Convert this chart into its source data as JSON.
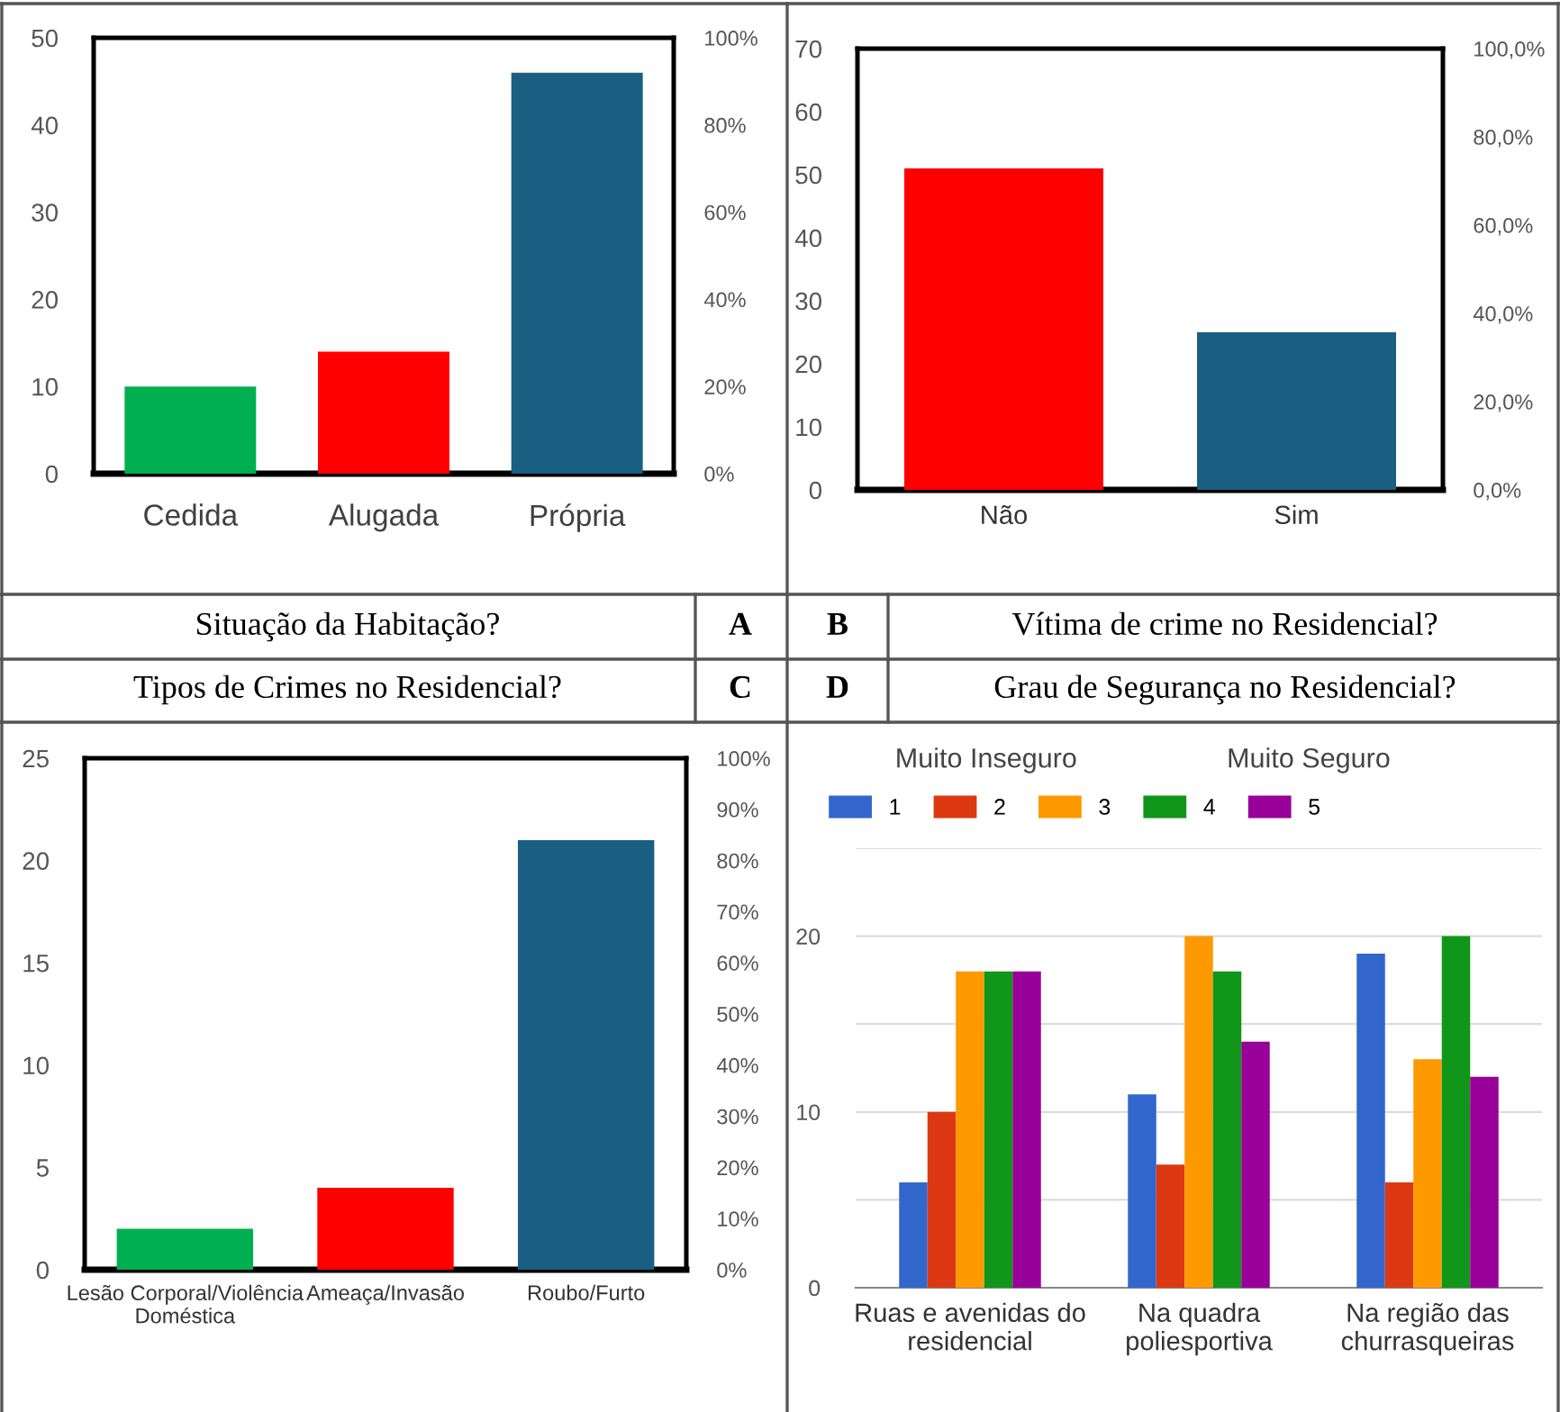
{
  "chart_data": [
    {
      "type": "bar",
      "title": "Situação da Habitação?",
      "subtitle": "A",
      "categories": [
        "Cedida",
        "Alugada",
        "Própria"
      ],
      "values": [
        10,
        14,
        46
      ],
      "colors": [
        "#00b050",
        "#ff0000",
        "#1a5e82"
      ],
      "ylim": [
        0,
        50
      ],
      "yticks": [
        0,
        10,
        20,
        30,
        40,
        50
      ],
      "y2lim": [
        0,
        100
      ],
      "y2ticks": [
        {
          "value": 0,
          "label": "0%"
        },
        {
          "value": 20,
          "label": "20%"
        },
        {
          "value": 40,
          "label": "40%"
        },
        {
          "value": 60,
          "label": "60%"
        },
        {
          "value": 80,
          "label": "80%"
        },
        {
          "value": 100,
          "label": "100%"
        }
      ]
    },
    {
      "type": "bar",
      "title": "Vítima de crime no Residencial?",
      "subtitle": "B",
      "categories": [
        "Não",
        "Sim"
      ],
      "values": [
        51,
        25
      ],
      "colors": [
        "#ff0000",
        "#1a5e82"
      ],
      "ylim": [
        0,
        70
      ],
      "yticks": [
        0,
        10,
        20,
        30,
        40,
        50,
        60,
        70
      ],
      "y2lim": [
        0,
        100
      ],
      "y2ticks": [
        {
          "value": 0,
          "label": "0,0%"
        },
        {
          "value": 20,
          "label": "20,0%"
        },
        {
          "value": 40,
          "label": "40,0%"
        },
        {
          "value": 60,
          "label": "60,0%"
        },
        {
          "value": 80,
          "label": "80,0%"
        },
        {
          "value": 100,
          "label": "100,0%"
        }
      ]
    },
    {
      "type": "bar",
      "title": "Tipos de Crimes no Residencial?",
      "subtitle": "C",
      "categories": [
        "Lesão Corporal/Violência\nDoméstica",
        "Ameaça/Invasão",
        "Roubo/Furto"
      ],
      "values": [
        2,
        4,
        21
      ],
      "colors": [
        "#00b050",
        "#ff0000",
        "#1a5e82"
      ],
      "ylim": [
        0,
        25
      ],
      "yticks": [
        0,
        5,
        10,
        15,
        20,
        25
      ],
      "y2lim": [
        0,
        100
      ],
      "y2ticks": [
        {
          "value": 0,
          "label": "0%"
        },
        {
          "value": 10,
          "label": "10%"
        },
        {
          "value": 20,
          "label": "20%"
        },
        {
          "value": 30,
          "label": "30%"
        },
        {
          "value": 40,
          "label": "40%"
        },
        {
          "value": 50,
          "label": "50%"
        },
        {
          "value": 60,
          "label": "60%"
        },
        {
          "value": 70,
          "label": "70%"
        },
        {
          "value": 80,
          "label": "80%"
        },
        {
          "value": 90,
          "label": "90%"
        },
        {
          "value": 100,
          "label": "100%"
        }
      ]
    },
    {
      "type": "bar",
      "title": "Grau de Segurança no Residencial?",
      "subtitle": "D",
      "annotations": [
        "Muito Inseguro",
        "Muito Seguro"
      ],
      "categories": [
        "Ruas e avenidas do\nresidencial",
        "Na quadra\npoliesportiva",
        "Na região das\nchurrasqueiras"
      ],
      "series": [
        {
          "name": "1",
          "color": "#3366cc",
          "values": [
            6,
            11,
            19
          ]
        },
        {
          "name": "2",
          "color": "#dc3912",
          "values": [
            10,
            7,
            6
          ]
        },
        {
          "name": "3",
          "color": "#ff9900",
          "values": [
            18,
            20,
            13
          ]
        },
        {
          "name": "4",
          "color": "#109618",
          "values": [
            18,
            18,
            20
          ]
        },
        {
          "name": "5",
          "color": "#990099",
          "values": [
            18,
            14,
            12
          ]
        }
      ],
      "ylim": [
        0,
        25
      ],
      "yticks": [
        0,
        {
          "value": 5,
          "label": null
        },
        10,
        {
          "value": 15,
          "label": null
        },
        20,
        {
          "value": 25,
          "label": null
        }
      ],
      "grid": "y",
      "legend": "top"
    }
  ]
}
